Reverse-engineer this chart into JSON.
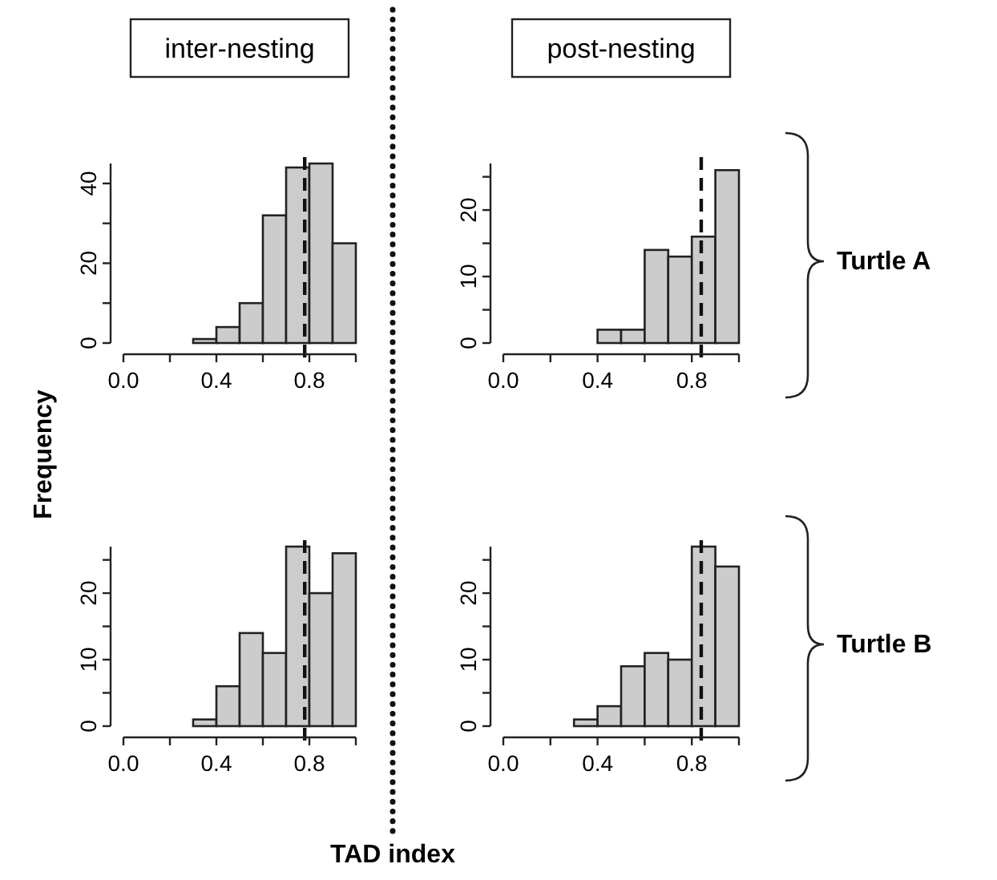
{
  "chart_data": [
    {
      "type": "histogram",
      "title": "inter-nesting",
      "ylabel": "Frequency",
      "bins": [
        0.3,
        0.4,
        0.5,
        0.6,
        0.7,
        0.8,
        0.9,
        1.0
      ],
      "values": [
        1,
        4,
        10,
        32,
        44,
        45,
        25
      ],
      "color": "#cccccc",
      "xlim": [
        0,
        1
      ],
      "ylim": [
        0,
        45
      ],
      "xticks": [
        {
          "value": 0,
          "label": "0.0"
        },
        {
          "value": 0.2,
          "label": null
        },
        {
          "value": 0.4,
          "label": "0.4"
        },
        {
          "value": 0.6,
          "label": null
        },
        {
          "value": 0.8,
          "label": "0.8"
        },
        {
          "value": 1,
          "label": null
        }
      ],
      "yticks": [
        0,
        {
          "value": 10,
          "label": null
        },
        20,
        {
          "value": 30,
          "label": null
        },
        40
      ],
      "ref_lines": [
        {
          "axis": "x",
          "value": 0.78,
          "line_style": "dashed"
        }
      ]
    },
    {
      "type": "histogram",
      "title": "post-nesting",
      "annotations": [
        "Turtle A"
      ],
      "bins": [
        0.4,
        0.5,
        0.6,
        0.7,
        0.8,
        0.9,
        1.0
      ],
      "values": [
        2,
        2,
        14,
        13,
        16,
        26
      ],
      "color": "#cccccc",
      "xlim": [
        0,
        1
      ],
      "ylim": [
        0,
        27
      ],
      "xticks": [
        {
          "value": 0,
          "label": "0.0"
        },
        {
          "value": 0.2,
          "label": null
        },
        {
          "value": 0.4,
          "label": "0.4"
        },
        {
          "value": 0.6,
          "label": null
        },
        {
          "value": 0.8,
          "label": "0.8"
        },
        {
          "value": 1,
          "label": null
        }
      ],
      "yticks": [
        0,
        {
          "value": 5,
          "label": null
        },
        10,
        {
          "value": 15,
          "label": null
        },
        20,
        {
          "value": 25,
          "label": null
        }
      ],
      "ref_lines": [
        {
          "axis": "x",
          "value": 0.84,
          "line_style": "dashed"
        }
      ]
    },
    {
      "type": "histogram",
      "xlabel": "TAD index",
      "bins": [
        0.3,
        0.4,
        0.5,
        0.6,
        0.7,
        0.8,
        0.9,
        1.0
      ],
      "values": [
        1,
        6,
        14,
        11,
        27,
        20,
        26
      ],
      "color": "#cccccc",
      "xlim": [
        0,
        1
      ],
      "ylim": [
        0,
        27
      ],
      "xticks": [
        {
          "value": 0,
          "label": "0.0"
        },
        {
          "value": 0.2,
          "label": null
        },
        {
          "value": 0.4,
          "label": "0.4"
        },
        {
          "value": 0.6,
          "label": null
        },
        {
          "value": 0.8,
          "label": "0.8"
        },
        {
          "value": 1,
          "label": null
        }
      ],
      "yticks": [
        0,
        {
          "value": 5,
          "label": null
        },
        10,
        {
          "value": 15,
          "label": null
        },
        20,
        {
          "value": 25,
          "label": null
        }
      ],
      "ref_lines": [
        {
          "axis": "x",
          "value": 0.78,
          "line_style": "dashed"
        }
      ]
    },
    {
      "type": "histogram",
      "annotations": [
        "Turtle B"
      ],
      "bins": [
        0.3,
        0.4,
        0.5,
        0.6,
        0.7,
        0.8,
        0.9,
        1.0
      ],
      "values": [
        1,
        3,
        9,
        11,
        10,
        27,
        24
      ],
      "color": "#cccccc",
      "xlim": [
        0,
        1
      ],
      "ylim": [
        0,
        27
      ],
      "xticks": [
        {
          "value": 0,
          "label": "0.0"
        },
        {
          "value": 0.2,
          "label": null
        },
        {
          "value": 0.4,
          "label": "0.4"
        },
        {
          "value": 0.6,
          "label": null
        },
        {
          "value": 0.8,
          "label": "0.8"
        },
        {
          "value": 1,
          "label": null
        }
      ],
      "yticks": [
        0,
        {
          "value": 5,
          "label": null
        },
        10,
        {
          "value": 15,
          "label": null
        },
        20,
        {
          "value": 25,
          "label": null
        }
      ],
      "ref_lines": [
        {
          "axis": "x",
          "value": 0.84,
          "line_style": "dashed"
        }
      ]
    }
  ]
}
